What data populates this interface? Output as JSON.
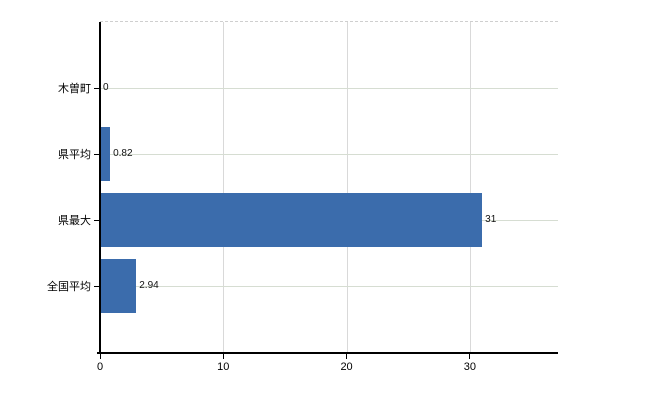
{
  "chart_data": {
    "type": "bar",
    "orientation": "horizontal",
    "title": "",
    "xlabel": "",
    "ylabel": "",
    "categories": [
      "木曽町",
      "県平均",
      "県最大",
      "全国平均"
    ],
    "values": [
      0,
      0.82,
      31,
      2.94
    ],
    "value_labels": [
      "0",
      "0.82",
      "31",
      "2.94"
    ],
    "x_ticks": [
      0,
      10,
      20,
      30
    ],
    "x_tick_labels": [
      "0",
      "10",
      "20",
      "30"
    ],
    "xlim": [
      0,
      37.15
    ],
    "grid": "on",
    "legend": "none"
  },
  "style": {
    "bar_color": "#3b6cac",
    "axis_color": "#000000",
    "h_grid_color": "#d6ddd2",
    "v_grid_color": "#d9d9d9",
    "top_border_color": "#cfcfcf",
    "label_color": "#000000",
    "background": "#ffffff"
  }
}
